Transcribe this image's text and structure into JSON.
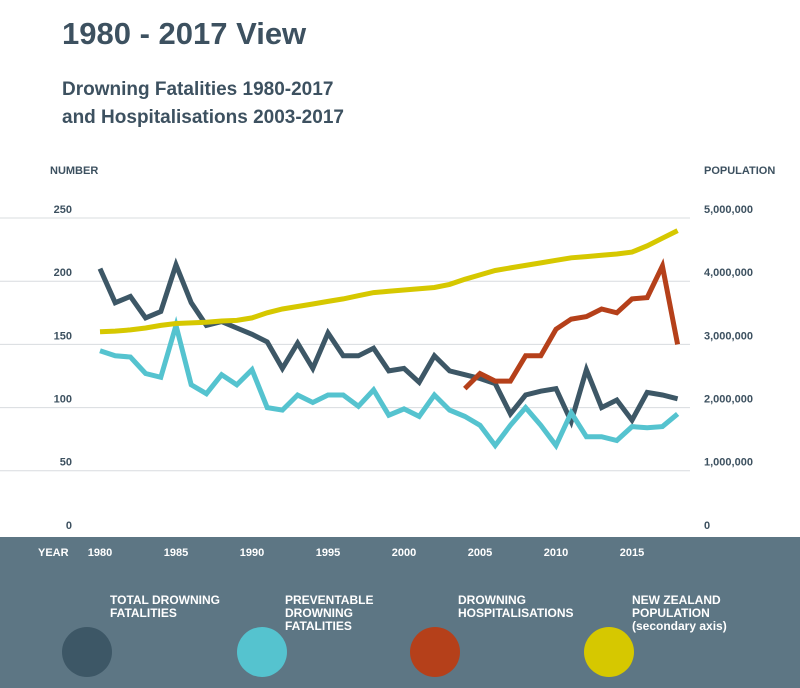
{
  "chart_data": {
    "type": "line",
    "title": "1980 - 2017 View",
    "subtitle": [
      "Drowning Fatalities 1980-2017",
      "and Hospitalisations 2003-2017"
    ],
    "y_label": "NUMBER",
    "y2_label": "POPULATION",
    "x_label": "YEAR",
    "x": [
      1980,
      1981,
      1982,
      1983,
      1984,
      1985,
      1986,
      1987,
      1988,
      1989,
      1990,
      1991,
      1992,
      1993,
      1994,
      1995,
      1996,
      1997,
      1998,
      1999,
      2000,
      2001,
      2002,
      2003,
      2004,
      2005,
      2006,
      2007,
      2008,
      2009,
      2010,
      2011,
      2012,
      2013,
      2014,
      2015,
      2016,
      2017,
      2018
    ],
    "xlim": [
      1980,
      2018
    ],
    "xticks": [
      1980,
      1985,
      1990,
      1995,
      2000,
      2005,
      2010,
      2015
    ],
    "ylim": [
      0,
      250
    ],
    "yticks": [
      0,
      50,
      100,
      150,
      200,
      250
    ],
    "y2lim": [
      0,
      5000000
    ],
    "y2ticks": [
      0,
      {
        "value": 1000000,
        "label": "1,000,000"
      },
      {
        "value": 2000000,
        "label": "2,000,000"
      },
      {
        "value": 3000000,
        "label": "3,000,000"
      },
      {
        "value": 4000000,
        "label": "4,000,000"
      },
      {
        "value": 5000000,
        "label": "5,000,000"
      }
    ],
    "grid": true,
    "series": [
      {
        "name": "TOTAL DROWNING FATALITIES",
        "color": "#3d5766",
        "values": [
          210,
          183,
          188,
          171,
          176,
          213,
          183,
          165,
          168,
          163,
          158,
          152,
          131,
          151,
          131,
          159,
          141,
          141,
          147,
          129,
          131,
          120,
          141,
          129,
          126,
          123,
          119,
          95,
          110,
          113,
          115,
          89,
          130,
          100,
          106,
          90,
          112,
          110,
          107
        ]
      },
      {
        "name": "PREVENTABLE DROWNING FATALITIES",
        "color": "#55c3cf",
        "values": [
          145,
          141,
          140,
          127,
          124,
          165,
          118,
          111,
          126,
          118,
          130,
          100,
          98,
          110,
          104,
          110,
          110,
          101,
          114,
          94,
          99,
          93,
          110,
          98,
          93,
          86,
          70,
          86,
          100,
          86,
          70,
          96,
          77,
          77,
          74,
          85,
          84,
          85,
          95
        ]
      },
      {
        "name": "DROWNING HOSPITALISATIONS",
        "color": "#b5401a",
        "values": [
          null,
          null,
          null,
          null,
          null,
          null,
          null,
          null,
          null,
          null,
          null,
          null,
          null,
          null,
          null,
          null,
          null,
          null,
          null,
          null,
          null,
          null,
          null,
          null,
          115,
          127,
          121,
          121,
          141,
          141,
          162,
          170,
          172,
          178,
          175,
          186,
          187,
          212,
          150
        ]
      },
      {
        "name": "NEW ZEALAND POPULATION (secondary axis)",
        "color": "#d6c800",
        "axis": "y2",
        "values": [
          3200000,
          3210000,
          3230000,
          3260000,
          3300000,
          3330000,
          3340000,
          3350000,
          3370000,
          3380000,
          3420000,
          3500000,
          3560000,
          3600000,
          3640000,
          3680000,
          3720000,
          3770000,
          3820000,
          3840000,
          3860000,
          3880000,
          3900000,
          3950000,
          4030000,
          4100000,
          4170000,
          4210000,
          4250000,
          4290000,
          4330000,
          4370000,
          4390000,
          4410000,
          4430000,
          4460000,
          4560000,
          4680000,
          4800000
        ]
      }
    ]
  }
}
